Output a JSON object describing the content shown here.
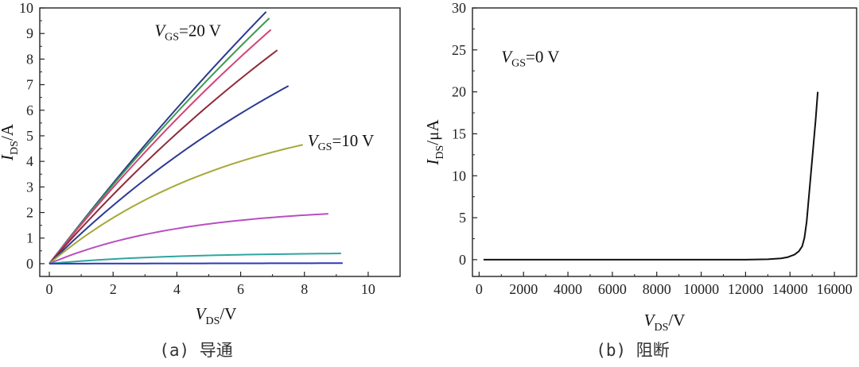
{
  "chart_data": [
    {
      "type": "line",
      "caption": "(a) 导通",
      "xlabel": {
        "symbol": "V",
        "sub": "DS",
        "unit": "/V"
      },
      "ylabel": {
        "symbol": "I",
        "sub": "DS",
        "unit": "/A"
      },
      "xlim": [
        -0.3,
        11.0
      ],
      "ylim": [
        -0.5,
        10.0
      ],
      "xticks": [
        0,
        2,
        4,
        6,
        8,
        10
      ],
      "yticks": [
        0,
        1,
        2,
        3,
        4,
        5,
        6,
        7,
        8,
        9,
        10
      ],
      "annotations": [
        {
          "symbol": "V",
          "sub": "GS",
          "rest": "=20 V",
          "x": 3.3,
          "y": 8.9
        },
        {
          "symbol": "V",
          "sub": "GS",
          "rest": "=10 V",
          "x": 8.1,
          "y": 4.6
        }
      ],
      "series": [
        {
          "color": "#2a3a8f",
          "x": [
            0,
            6.8
          ],
          "y": [
            0,
            9.85
          ],
          "curve": 0.04
        },
        {
          "color": "#3f9a52",
          "x": [
            0,
            6.9
          ],
          "y": [
            0,
            9.6
          ],
          "curve": 0.05
        },
        {
          "color": "#d2447a",
          "x": [
            0,
            6.95
          ],
          "y": [
            0,
            9.15
          ],
          "curve": 0.06
        },
        {
          "color": "#8e2b3a",
          "x": [
            0,
            7.15
          ],
          "y": [
            0,
            8.35
          ],
          "curve": 0.07
        },
        {
          "color": "#2d3a93",
          "x": [
            0,
            7.5
          ],
          "y": [
            0,
            6.95
          ],
          "curve": 0.1
        },
        {
          "color": "#a6a838",
          "x": [
            0,
            7.95
          ],
          "y": [
            0,
            4.65
          ],
          "curve": 0.22
        },
        {
          "color": "#b84fc1",
          "x": [
            0,
            8.75
          ],
          "y": [
            0,
            1.95
          ],
          "curve": 0.35
        },
        {
          "color": "#2fa6a0",
          "x": [
            0,
            9.15
          ],
          "y": [
            0,
            0.4
          ],
          "curve": 0.4
        },
        {
          "color": "#2a3ab5",
          "x": [
            0,
            9.2
          ],
          "y": [
            0,
            0.02
          ],
          "curve": 0.0
        }
      ]
    },
    {
      "type": "line",
      "caption": "(b) 阻断",
      "xlabel": {
        "symbol": "V",
        "sub": "DS",
        "unit": "/V"
      },
      "ylabel": {
        "symbol": "I",
        "sub": "DS",
        "unit": "/μA"
      },
      "xlim": [
        -300,
        17000
      ],
      "ylim": [
        -2.0,
        30
      ],
      "xticks": [
        0,
        2000,
        4000,
        6000,
        8000,
        10000,
        12000,
        14000,
        16000
      ],
      "yticks": [
        0,
        5,
        10,
        15,
        20,
        25,
        30
      ],
      "annotations": [
        {
          "symbol": "V",
          "sub": "GS",
          "rest": "=0 V",
          "x": 1000,
          "y": 23.5
        }
      ],
      "series": [
        {
          "color": "#111111",
          "x": [
            200,
            2000,
            4000,
            6000,
            8000,
            10000,
            12000,
            13000,
            13600,
            13900,
            14200,
            14400,
            14550,
            14650,
            14750,
            14850,
            14950,
            15050,
            15150,
            15250
          ],
          "y": [
            0,
            0,
            0,
            0,
            0,
            0,
            0,
            0.05,
            0.15,
            0.3,
            0.6,
            1.0,
            1.6,
            2.6,
            4.5,
            7.5,
            10.5,
            13.5,
            16.5,
            20
          ]
        }
      ]
    }
  ]
}
